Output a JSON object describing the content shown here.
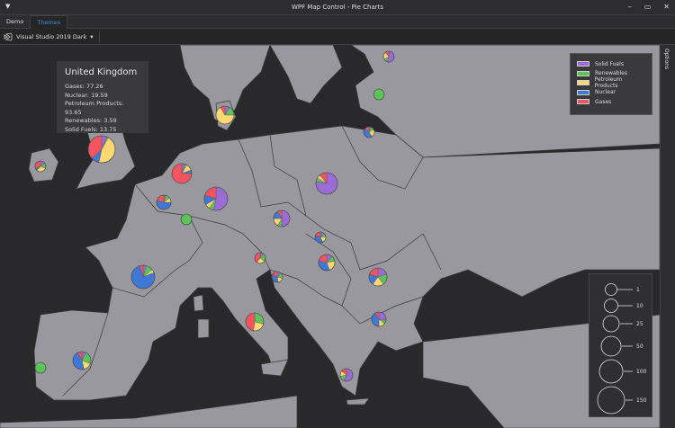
{
  "window": {
    "title": "WPF Map Control - Pie Charts",
    "menu_icon": "caret-down-icon"
  },
  "tabs": [
    {
      "label": "Demo",
      "active": false
    },
    {
      "label": "Themes",
      "active": true
    }
  ],
  "toolbar": {
    "theme_icon": "visual-studio-icon",
    "theme_value": "Visual Studio 2019 Dark"
  },
  "options_label": "Options",
  "colors": {
    "Solid Fuels": "#9b6bd6",
    "Renewables": "#5cc25a",
    "Petroleum Products": "#fbd872",
    "Nuclear": "#3f78d6",
    "Gases": "#f2555f",
    "land": "#99989e",
    "sea": "#29292b",
    "border": "#3a3a3e"
  },
  "legend": [
    {
      "label": "Solid Fuels",
      "color": "#9b6bd6"
    },
    {
      "label": "Renewables",
      "color": "#5cc25a"
    },
    {
      "label": "Petroleum Products",
      "color": "#fbd872"
    },
    {
      "label": "Nuclear",
      "color": "#3f78d6"
    },
    {
      "label": "Gases",
      "color": "#f2555f"
    }
  ],
  "size_legend": [
    "1",
    "10",
    "25",
    "50",
    "100",
    "150"
  ],
  "tooltip": {
    "title": "United Kingdom",
    "rows": [
      "Gases: 77.26",
      "Nuclear: 19.59",
      "Petroleum Products: 93.65",
      "Renewables: 3.59",
      "Solid Fuels: 13.75"
    ]
  },
  "pies": [
    {
      "id": "united-kingdom",
      "values": [
        13.75,
        3.59,
        93.65,
        19.59,
        77.26
      ]
    },
    {
      "id": "a",
      "values": [
        10,
        10,
        20,
        5,
        20
      ]
    },
    {
      "id": "b",
      "values": [
        0,
        30,
        0,
        0,
        0
      ]
    },
    {
      "id": "c",
      "values": [
        25,
        5,
        10,
        0,
        5
      ]
    },
    {
      "id": "d",
      "values": [
        5,
        10,
        40,
        0,
        5
      ]
    },
    {
      "id": "e",
      "values": [
        2,
        5,
        10,
        20,
        5
      ]
    },
    {
      "id": "f",
      "values": [
        5,
        3,
        10,
        5,
        70
      ]
    },
    {
      "id": "g",
      "values": [
        2,
        5,
        5,
        25,
        10
      ]
    },
    {
      "id": "h",
      "values": [
        80,
        10,
        10,
        20,
        30
      ]
    },
    {
      "id": "i",
      "values": [
        0,
        25,
        0,
        0,
        0
      ]
    },
    {
      "id": "j",
      "values": [
        70,
        5,
        5,
        0,
        10
      ]
    },
    {
      "id": "k",
      "values": [
        30,
        5,
        10,
        10,
        5
      ]
    },
    {
      "id": "l",
      "values": [
        3,
        3,
        5,
        10,
        5
      ]
    },
    {
      "id": "m",
      "values": [
        2,
        5,
        5,
        0,
        8
      ]
    },
    {
      "id": "n",
      "values": [
        5,
        5,
        10,
        15,
        10
      ]
    },
    {
      "id": "o",
      "values": [
        5,
        10,
        5,
        80,
        5
      ]
    },
    {
      "id": "p",
      "values": [
        2,
        3,
        3,
        6,
        3
      ]
    },
    {
      "id": "q",
      "values": [
        10,
        10,
        10,
        10,
        10
      ]
    },
    {
      "id": "r",
      "values": [
        0,
        12,
        10,
        0,
        20
      ]
    },
    {
      "id": "s",
      "values": [
        10,
        3,
        5,
        15,
        3
      ]
    },
    {
      "id": "t",
      "values": [
        5,
        15,
        10,
        30,
        5
      ]
    },
    {
      "id": "u",
      "values": [
        0,
        20,
        0,
        0,
        0
      ]
    },
    {
      "id": "v",
      "values": [
        20,
        5,
        5,
        0,
        5
      ]
    }
  ]
}
